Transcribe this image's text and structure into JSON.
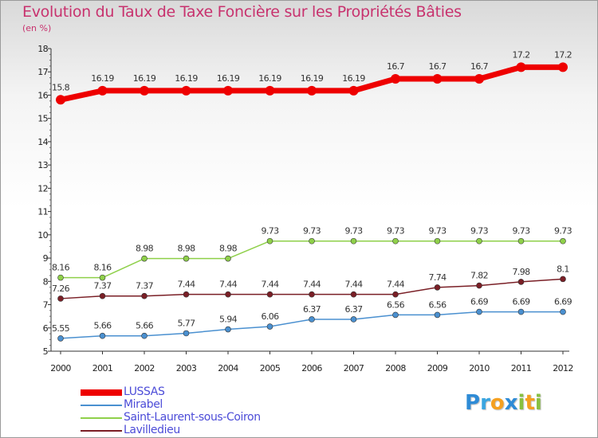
{
  "title": "Evolution du Taux de Taxe Foncière sur les Propriétés Bâties",
  "unit_label": "(en %)",
  "logo_text": "Proxiti",
  "chart_data": {
    "type": "line",
    "title": "Evolution du Taux de Taxe Foncière sur les Propriétés Bâties",
    "ylabel": "(en %)",
    "xlabel": "",
    "ylim": [
      5,
      18
    ],
    "yticks": [
      5,
      6,
      7,
      8,
      9,
      10,
      11,
      12,
      13,
      14,
      15,
      16,
      17,
      18
    ],
    "grid": false,
    "legend_position": "bottom-left",
    "x": [
      "2000",
      "2001",
      "2002",
      "2003",
      "2004",
      "2005",
      "2006",
      "2007",
      "2008",
      "2009",
      "2010",
      "2011",
      "2012"
    ],
    "series": [
      {
        "name": "LUSSAS",
        "color": "#ee0000",
        "values": [
          15.8,
          16.19,
          16.19,
          16.19,
          16.19,
          16.19,
          16.19,
          16.19,
          16.7,
          16.7,
          16.7,
          17.2,
          17.2
        ],
        "labels": [
          "15.8",
          "16.19",
          "16.19",
          "16.19",
          "16.19",
          "16.19",
          "16.19",
          "16.19",
          "16.7",
          "16.7",
          "16.7",
          "17.2",
          "17.2"
        ]
      },
      {
        "name": "Mirabel",
        "color": "#4a90d0",
        "values": [
          5.55,
          5.66,
          5.66,
          5.77,
          5.94,
          6.06,
          6.37,
          6.37,
          6.56,
          6.56,
          6.69,
          6.69,
          6.69
        ],
        "labels": [
          "5.55",
          "5.66",
          "5.66",
          "5.77",
          "5.94",
          "6.06",
          "6.37",
          "6.37",
          "6.56",
          "6.56",
          "6.69",
          "6.69",
          "6.69"
        ]
      },
      {
        "name": "Saint-Laurent-sous-Coiron",
        "color": "#8fd04a",
        "values": [
          8.16,
          8.16,
          8.98,
          8.98,
          8.98,
          9.73,
          9.73,
          9.73,
          9.73,
          9.73,
          9.73,
          9.73,
          9.73
        ],
        "labels": [
          "8.16",
          "8.16",
          "8.98",
          "8.98",
          "8.98",
          "9.73",
          "9.73",
          "9.73",
          "9.73",
          "9.73",
          "9.73",
          "9.73",
          "9.73"
        ]
      },
      {
        "name": "Lavilledieu",
        "color": "#7a1f26",
        "values": [
          7.26,
          7.37,
          7.37,
          7.44,
          7.44,
          7.44,
          7.44,
          7.44,
          7.44,
          7.74,
          7.82,
          7.98,
          8.1
        ],
        "labels": [
          "7.26",
          "7.37",
          "7.37",
          "7.44",
          "7.44",
          "7.44",
          "7.44",
          "7.44",
          "7.44",
          "7.74",
          "7.82",
          "7.98",
          "8.1"
        ]
      }
    ]
  }
}
